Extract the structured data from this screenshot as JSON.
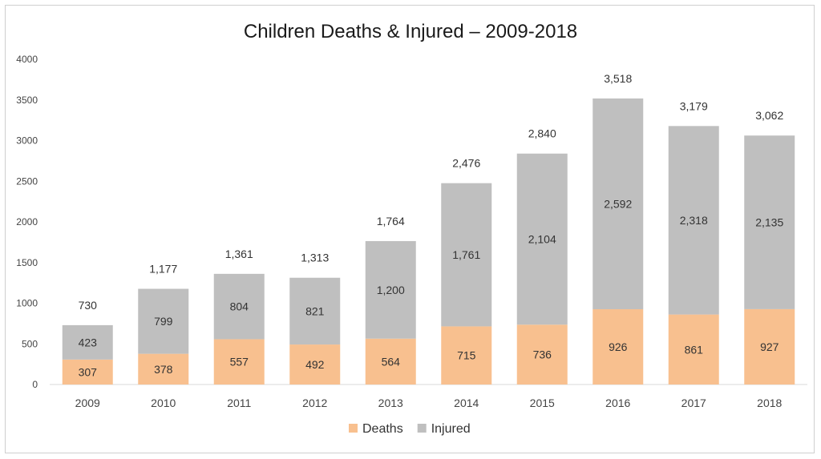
{
  "chart_data": {
    "type": "bar",
    "stacked": true,
    "title": "Children Deaths & Injured – 2009-2018",
    "categories": [
      "2009",
      "2010",
      "2011",
      "2012",
      "2013",
      "2014",
      "2015",
      "2016",
      "2017",
      "2018"
    ],
    "series": [
      {
        "name": "Deaths",
        "color": "#f8c08f",
        "values": [
          307,
          378,
          557,
          492,
          564,
          715,
          736,
          926,
          861,
          927
        ],
        "labels": [
          "307",
          "378",
          "557",
          "492",
          "564",
          "715",
          "736",
          "926",
          "861",
          "927"
        ]
      },
      {
        "name": "Injured",
        "color": "#bfbfbf",
        "values": [
          423,
          799,
          804,
          821,
          1200,
          1761,
          2104,
          2592,
          2318,
          2135
        ],
        "labels": [
          "423",
          "799",
          "804",
          "821",
          "1,200",
          "1,761",
          "2,104",
          "2,592",
          "2,318",
          "2,135"
        ]
      }
    ],
    "totals": [
      "730",
      "1,177",
      "1,361",
      "1,313",
      "1,764",
      "2,476",
      "2,840",
      "3,518",
      "3,179",
      "3,062"
    ],
    "yticks": [
      "0",
      "500",
      "1000",
      "1500",
      "2000",
      "2500",
      "3000",
      "3500",
      "4000"
    ],
    "ylim": [
      0,
      4000
    ],
    "grid": false,
    "legend_position": "bottom"
  }
}
